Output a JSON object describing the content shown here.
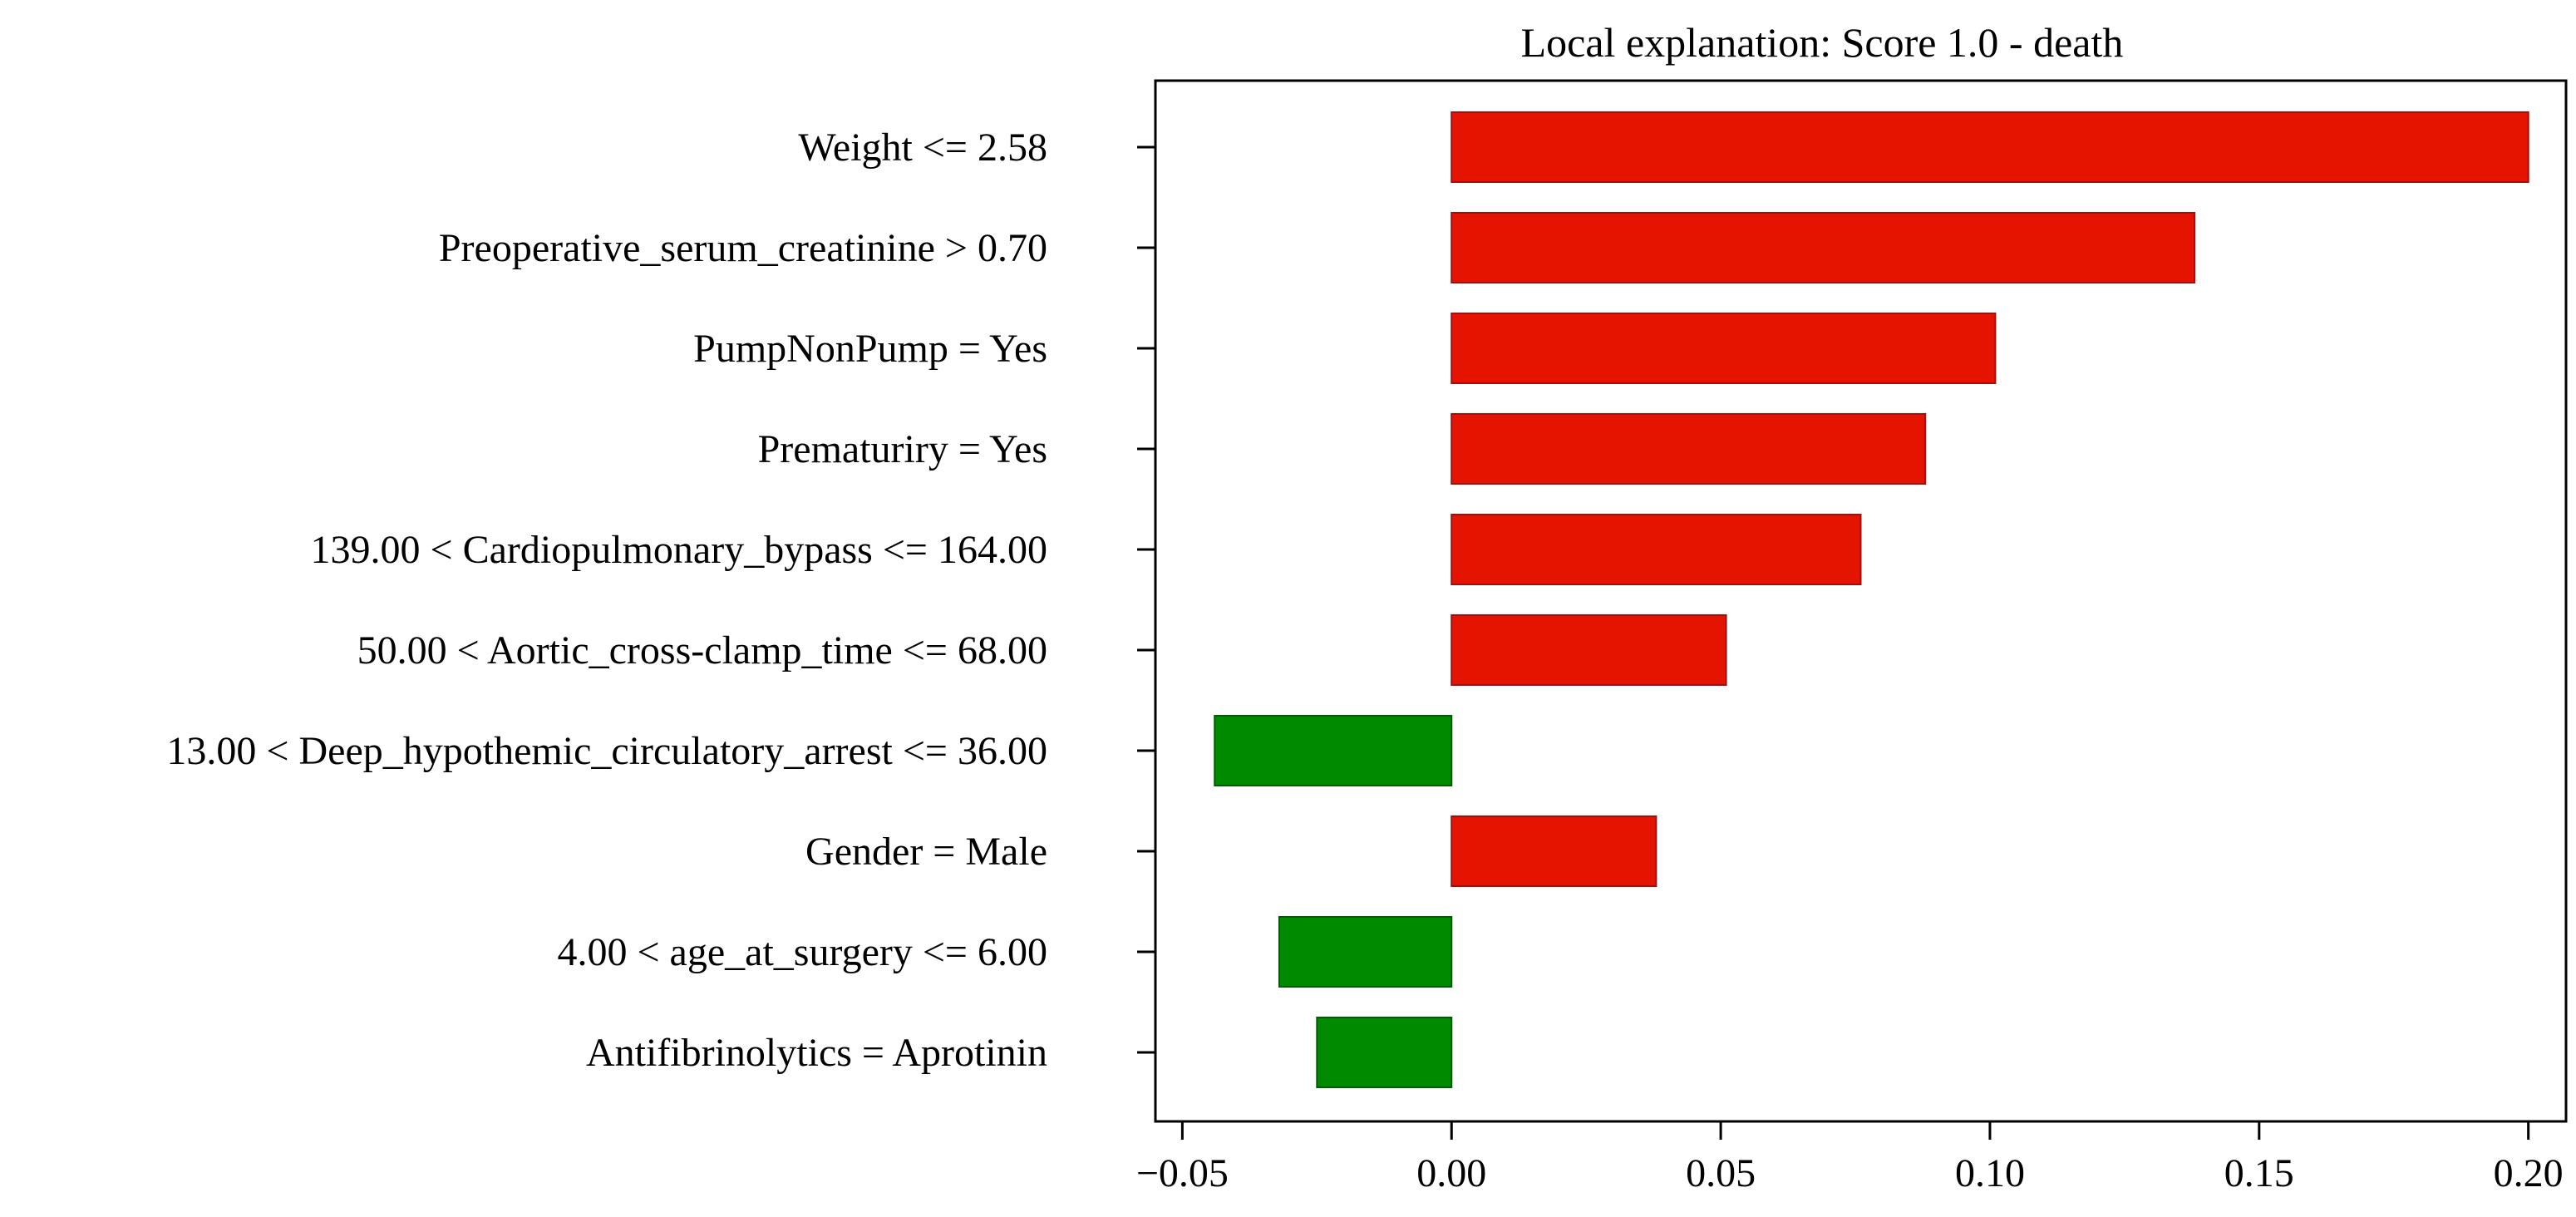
{
  "chart_data": {
    "type": "bar",
    "orientation": "horizontal",
    "title": "Local explanation: Score 1.0 - death",
    "xlabel": "",
    "ylabel": "",
    "xlim": [
      -0.055,
      0.207
    ],
    "xticks": [
      -0.05,
      0.0,
      0.05,
      0.1,
      0.15,
      0.2
    ],
    "xtick_labels": [
      "−0.05",
      "0.00",
      "0.05",
      "0.10",
      "0.15",
      "0.20"
    ],
    "grid": false,
    "legend": "none",
    "categories": [
      "Weight <= 2.58",
      "Preoperative_serum_creatinine > 0.70",
      "PumpNonPump = Yes",
      "Prematuriry = Yes",
      "139.00 < Cardiopulmonary_bypass <= 164.00",
      "50.00 < Aortic_cross-clamp_time <= 68.00",
      "13.00 < Deep_hypothemic_circulatory_arrest <= 36.00",
      "Gender = Male",
      "4.00 < age_at_surgery <= 6.00",
      "Antifibrinolytics = Aprotinin"
    ],
    "values": [
      0.2,
      0.138,
      0.101,
      0.088,
      0.076,
      0.051,
      -0.044,
      0.038,
      -0.032,
      -0.025
    ],
    "colors": {
      "positive": "#e41400",
      "positive_edge": "#a01010",
      "negative": "#008a00",
      "negative_edge": "#005c00",
      "axis": "#000000"
    }
  }
}
